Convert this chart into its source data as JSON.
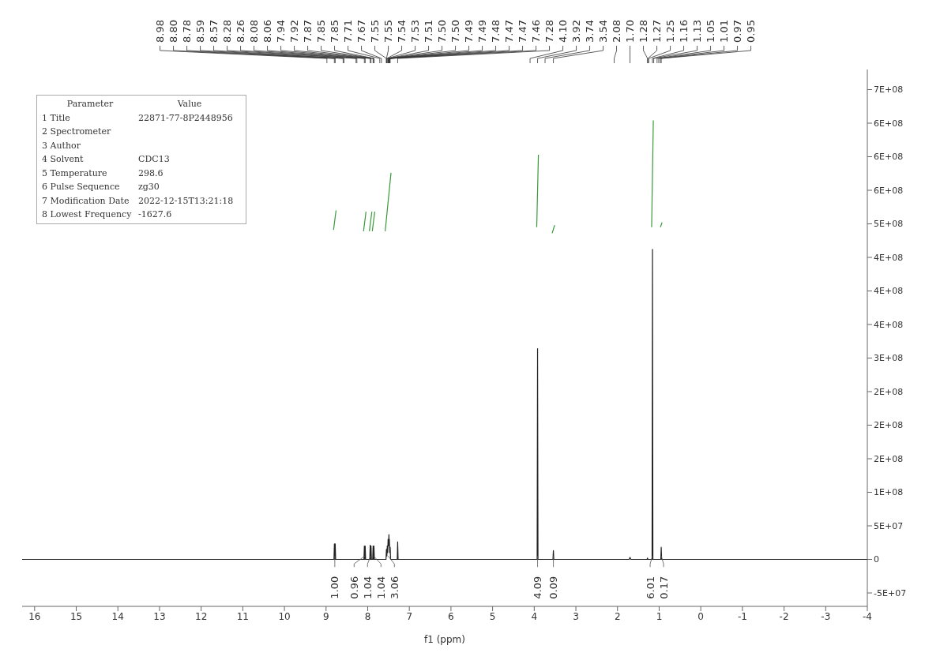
{
  "chart_data": {
    "type": "line",
    "xlabel": "f1 (ppm)",
    "xlim": [
      16.3,
      -4.0
    ],
    "xticks": [
      16,
      15,
      14,
      13,
      12,
      11,
      10,
      9,
      8,
      7,
      6,
      5,
      4,
      3,
      2,
      1,
      0,
      -1,
      -2,
      -3,
      -4
    ],
    "ylim": [
      -70000000,
      730000000
    ],
    "yticks": [
      {
        "value": -50000000,
        "label": "-5E+07"
      },
      {
        "value": 0,
        "label": "0"
      },
      {
        "value": 50000000,
        "label": "5E+07"
      },
      {
        "value": 100000000,
        "label": "1E+08"
      },
      {
        "value": 150000000,
        "label": "2E+08"
      },
      {
        "value": 200000000,
        "label": "2E+08"
      },
      {
        "value": 250000000,
        "label": "2E+08"
      },
      {
        "value": 300000000,
        "label": "3E+08"
      },
      {
        "value": 350000000,
        "label": "4E+08"
      },
      {
        "value": 400000000,
        "label": "4E+08"
      },
      {
        "value": 450000000,
        "label": "4E+08"
      },
      {
        "value": 500000000,
        "label": "5E+08"
      },
      {
        "value": 550000000,
        "label": "6E+08"
      },
      {
        "value": 600000000,
        "label": "6E+08"
      },
      {
        "value": 650000000,
        "label": "6E+08"
      },
      {
        "value": 700000000,
        "label": "7E+08"
      }
    ],
    "grid": false,
    "legend": false,
    "marker": "none",
    "line_style": "solid",
    "series": [
      {
        "color": "#222222",
        "x": [
          16.3,
          8.81,
          8.8,
          8.79,
          8.78,
          8.77,
          8.09,
          8.08,
          8.07,
          8.06,
          8.05,
          7.95,
          7.94,
          7.93,
          7.92,
          7.91,
          7.88,
          7.87,
          7.86,
          7.85,
          7.84,
          7.56,
          7.55,
          7.54,
          7.53,
          7.52,
          7.51,
          7.5,
          7.49,
          7.485,
          7.48,
          7.47,
          7.46,
          7.45,
          7.29,
          7.28,
          7.27,
          3.93,
          3.92,
          3.91,
          3.55,
          3.54,
          3.53,
          1.72,
          1.7,
          1.68,
          1.29,
          1.28,
          1.27,
          1.17,
          1.16,
          1.15,
          0.96,
          0.95,
          0.94,
          -4.0
        ],
        "values": [
          0,
          0,
          23000000,
          0,
          23000000,
          0,
          0,
          20000000,
          0,
          20000000,
          0,
          0,
          21000000,
          0,
          20000000,
          0,
          0,
          20000000,
          0,
          20000000,
          0,
          0,
          15000000,
          5000000,
          20000000,
          10000000,
          30000000,
          20000000,
          37000000,
          25000000,
          30000000,
          10000000,
          18000000,
          0,
          0,
          26000000,
          0,
          0,
          314000000,
          0,
          0,
          13000000,
          0,
          0,
          3000000,
          0,
          0,
          2000000,
          0,
          0,
          462000000,
          0,
          0,
          18000000,
          0,
          0
        ]
      },
      {
        "color": "#3a9a3a",
        "x": [
          8.82,
          8.76,
          8.5,
          8.1,
          8.04,
          8.0,
          7.96,
          7.9,
          7.895,
          7.89,
          7.83,
          7.7,
          7.58,
          7.44,
          5.0,
          3.94,
          3.9,
          3.7,
          3.57,
          3.51,
          2.0,
          1.18,
          1.14,
          1.0,
          0.97,
          0.93
        ],
        "values": [
          491000000,
          520000000,
          null,
          489000000,
          518000000,
          null,
          489000000,
          518000000,
          null,
          489000000,
          518000000,
          null,
          489000000,
          576000000,
          null,
          495000000,
          603000000,
          null,
          486000000,
          498000000,
          null,
          495000000,
          654000000,
          null,
          495000000,
          502000000
        ]
      }
    ],
    "annotations": [
      "8.98",
      "8.80",
      "8.78",
      "8.59",
      "8.57",
      "8.28",
      "8.26",
      "8.08",
      "8.06",
      "7.94",
      "7.92",
      "7.87",
      "7.85",
      "7.85",
      "7.71",
      "7.67",
      "7.55",
      "7.55",
      "7.54",
      "7.53",
      "7.51",
      "7.50",
      "7.50",
      "7.49",
      "7.49",
      "7.48",
      "7.47",
      "7.47",
      "7.46",
      "7.28",
      "4.10",
      "3.92",
      "3.74",
      "3.54",
      "2.08",
      "1.70",
      "1.28",
      "1.27",
      "1.25",
      "1.16",
      "1.13",
      "1.05",
      "1.01",
      "0.97",
      "0.95",
      "1.00",
      "0.96",
      "1.04",
      "1.04",
      "3.06",
      "4.09",
      "0.09",
      "6.01",
      "0.17",
      "Parameter",
      "1 Title",
      "2 Spectrometer",
      "3 Author",
      "4 Solvent",
      "5 Temperature",
      "6 Pulse Sequence",
      "7 Modification Date",
      "8 Lowest Frequency",
      "Value",
      "22871-77-8P2448956",
      "CDC13",
      "298.6",
      "zg30",
      "2022-12-15T13:21:18",
      "-1627.6"
    ]
  }
}
